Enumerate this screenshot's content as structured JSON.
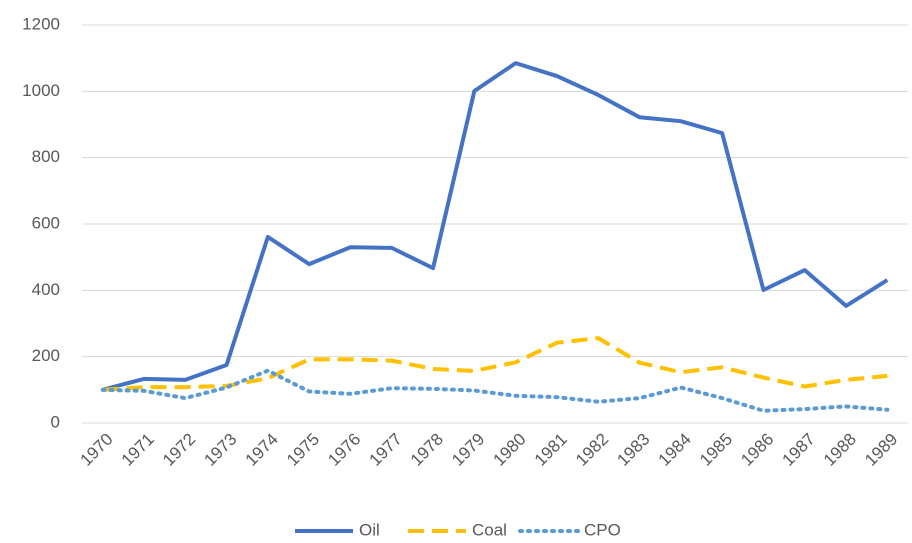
{
  "chart_data": {
    "type": "line",
    "categories": [
      "1970",
      "1971",
      "1972",
      "1973",
      "1974",
      "1975",
      "1976",
      "1977",
      "1978",
      "1979",
      "1980",
      "1981",
      "1982",
      "1983",
      "1984",
      "1985",
      "1986",
      "1987",
      "1988",
      "1989"
    ],
    "series": [
      {
        "name": "Oil",
        "color": "#4472c4",
        "dash": "solid",
        "values": [
          100,
          133,
          130,
          175,
          561,
          479,
          530,
          528,
          467,
          1001,
          1085,
          1046,
          989,
          922,
          910,
          874,
          401,
          461,
          353,
          431
        ]
      },
      {
        "name": "Coal",
        "color": "#ffc000",
        "dash": "dashed",
        "values": [
          100,
          108,
          108,
          112,
          135,
          192,
          192,
          188,
          163,
          157,
          183,
          242,
          256,
          182,
          153,
          168,
          137,
          110,
          130,
          142
        ]
      },
      {
        "name": "CPO",
        "color": "#5b9bd5",
        "dash": "dotted",
        "values": [
          100,
          97,
          75,
          107,
          158,
          95,
          88,
          105,
          103,
          98,
          82,
          78,
          64,
          75,
          107,
          75,
          37,
          42,
          50,
          40
        ]
      }
    ],
    "ylim": [
      0,
      1200
    ],
    "yticks": [
      0,
      200,
      400,
      600,
      800,
      1000,
      1200
    ],
    "grid": true,
    "legend": "bottom"
  }
}
